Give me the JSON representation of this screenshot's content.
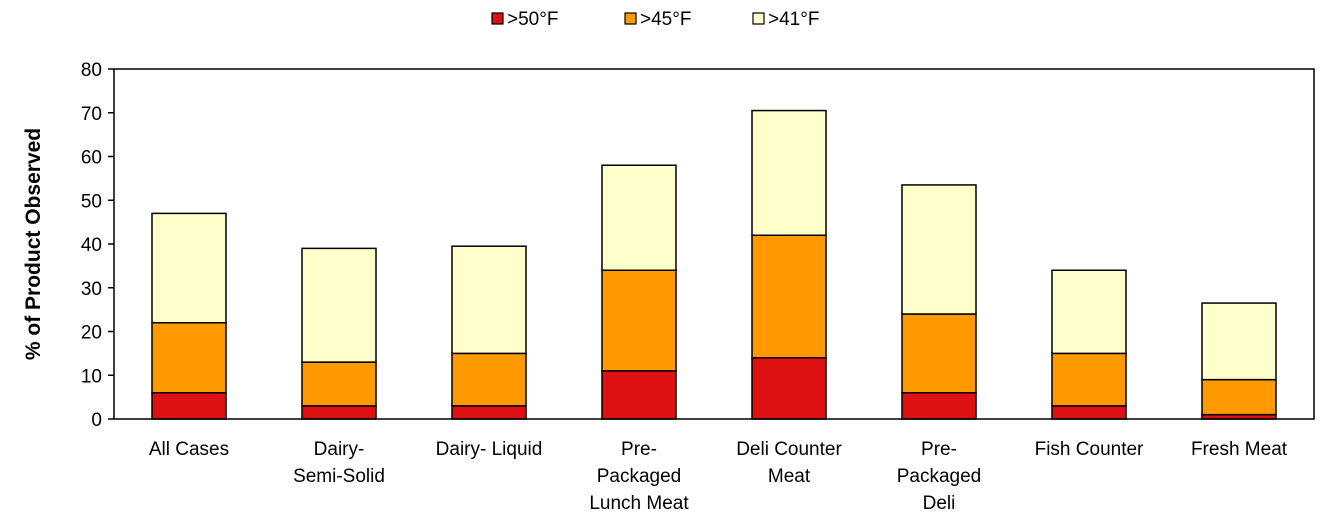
{
  "chart_data": {
    "type": "bar",
    "stacked": true,
    "categories": [
      [
        "All Cases"
      ],
      [
        "Dairy-",
        "Semi-Solid"
      ],
      [
        "Dairy- Liquid"
      ],
      [
        "Pre-",
        "Packaged",
        "Lunch Meat"
      ],
      [
        "Deli Counter",
        "Meat"
      ],
      [
        "Pre-",
        "Packaged",
        "Deli"
      ],
      [
        "Fish Counter"
      ],
      [
        "Fresh Meat"
      ]
    ],
    "series": [
      {
        "name": ">50°F",
        "color": "#dd1111",
        "values": [
          6,
          3,
          3,
          11,
          14,
          6,
          3,
          1
        ]
      },
      {
        "name": ">45°F",
        "color": "#ff9900",
        "values": [
          16,
          10,
          12,
          23,
          28,
          18,
          12,
          8
        ]
      },
      {
        "name": ">41°F",
        "color": "#ffffcc",
        "values": [
          25,
          26,
          24.5,
          24,
          28.5,
          29.5,
          19,
          17.5
        ]
      }
    ],
    "ylabel": "% of Product Observed",
    "xlabel": "",
    "ylim": [
      0,
      80
    ],
    "yticks": [
      0,
      10,
      20,
      30,
      40,
      50,
      60,
      70,
      80
    ],
    "grid": false,
    "legend_position": "top-center"
  }
}
